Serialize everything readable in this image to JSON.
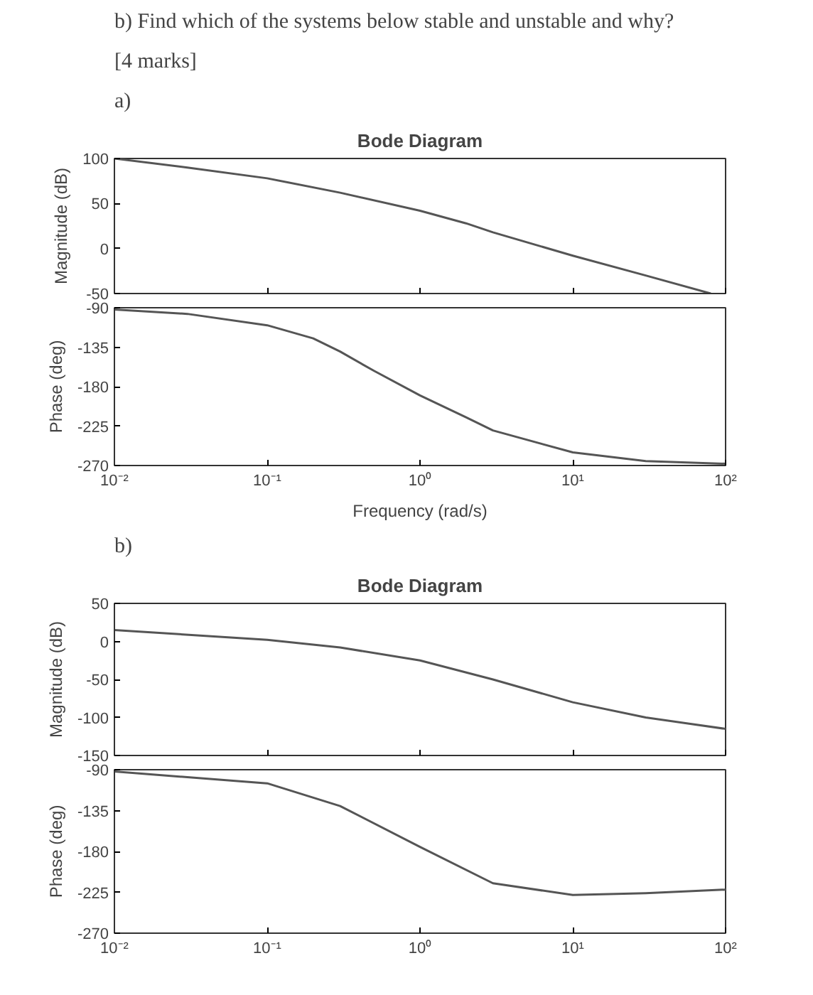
{
  "chart_data": [
    {
      "type": "line",
      "title": "Bode Diagram",
      "ylabel": "Magnitude (dB)",
      "annotations": [
        "b) Find which of the systems below stable and unstable and why?",
        "[4 marks]",
        "a)"
      ],
      "log": "x",
      "grid": false,
      "tick_labels": "y",
      "xlim": [
        0.01,
        100
      ],
      "ylim": [
        -50,
        100
      ],
      "xticks": [
        {
          "value": 0.01,
          "label": null
        },
        {
          "value": 0.1,
          "label": null
        },
        {
          "value": 1,
          "label": null
        },
        {
          "value": 10,
          "label": null
        },
        {
          "value": 100,
          "label": null
        }
      ],
      "yticks": [
        -50,
        0,
        50,
        100
      ],
      "series": [
        {
          "color": "#555555",
          "x": [
            0.01,
            0.03,
            0.1,
            0.3,
            1,
            2,
            3,
            10,
            30,
            80
          ],
          "values": [
            100,
            90,
            78,
            62,
            42,
            28,
            18,
            -8,
            -30,
            -50
          ]
        }
      ]
    },
    {
      "type": "line",
      "xlabel": "Frequency (rad/s)",
      "ylabel": "Phase (deg)",
      "log": "x",
      "grid": false,
      "xlim": [
        0.01,
        100
      ],
      "ylim": [
        -270,
        -90
      ],
      "xticks": [
        {
          "value": 0.01,
          "label": "10⁻²"
        },
        {
          "value": 0.1,
          "label": "10⁻¹"
        },
        {
          "value": 1,
          "label": "10⁰"
        },
        {
          "value": 10,
          "label": "10¹"
        },
        {
          "value": 100,
          "label": "10²"
        }
      ],
      "yticks": [
        -270,
        -225,
        -180,
        -135,
        -90
      ],
      "series": [
        {
          "color": "#555555",
          "x": [
            0.01,
            0.03,
            0.1,
            0.2,
            0.3,
            0.5,
            1,
            2,
            3,
            10,
            30,
            100
          ],
          "values": [
            -92,
            -97,
            -110,
            -125,
            -140,
            -162,
            -190,
            -215,
            -230,
            -255,
            -265,
            -268
          ]
        }
      ]
    },
    {
      "type": "line",
      "title": "Bode Diagram",
      "ylabel": "Magnitude (dB)",
      "annotations": [
        "b)"
      ],
      "log": "x",
      "grid": false,
      "tick_labels": "y",
      "xlim": [
        0.01,
        100
      ],
      "ylim": [
        -150,
        50
      ],
      "xticks": [
        {
          "value": 0.01,
          "label": null
        },
        {
          "value": 0.1,
          "label": null
        },
        {
          "value": 1,
          "label": null
        },
        {
          "value": 10,
          "label": null
        },
        {
          "value": 100,
          "label": null
        }
      ],
      "yticks": [
        -150,
        -100,
        -50,
        0,
        50
      ],
      "series": [
        {
          "color": "#555555",
          "x": [
            0.01,
            0.1,
            0.3,
            1,
            3,
            10,
            30,
            100
          ],
          "values": [
            15,
            2,
            -8,
            -25,
            -50,
            -80,
            -100,
            -115
          ]
        }
      ]
    },
    {
      "type": "line",
      "ylabel": "Phase (deg)",
      "log": "x",
      "grid": false,
      "xlim": [
        0.01,
        100
      ],
      "ylim": [
        -270,
        -90
      ],
      "xticks": [
        {
          "value": 0.01,
          "label": "10⁻²"
        },
        {
          "value": 0.1,
          "label": "10⁻¹"
        },
        {
          "value": 1,
          "label": "10⁰"
        },
        {
          "value": 10,
          "label": "10¹"
        },
        {
          "value": 100,
          "label": "10²"
        }
      ],
      "yticks": [
        -270,
        -225,
        -180,
        -135,
        -90
      ],
      "series": [
        {
          "color": "#555555",
          "x": [
            0.01,
            0.1,
            0.3,
            1,
            3,
            10,
            30,
            100
          ],
          "values": [
            -92,
            -105,
            -130,
            -175,
            -215,
            -228,
            -226,
            -222
          ]
        }
      ]
    }
  ]
}
